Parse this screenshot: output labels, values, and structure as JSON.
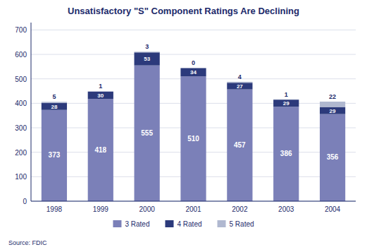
{
  "chart_data": {
    "type": "bar",
    "title": "Unsatisfactory \"S\" Component Ratings Are Declining",
    "categories": [
      "1998",
      "1999",
      "2000",
      "2001",
      "2002",
      "2003",
      "2004"
    ],
    "series": [
      {
        "name": "3 Rated",
        "color": "#7B80B8",
        "values": [
          373,
          418,
          555,
          510,
          457,
          386,
          356
        ]
      },
      {
        "name": "4 Rated",
        "color": "#2C3A7B",
        "values": [
          28,
          30,
          53,
          34,
          27,
          29,
          29
        ]
      },
      {
        "name": "5 Rated",
        "color": "#B0B8D0",
        "values": [
          5,
          1,
          3,
          0,
          4,
          1,
          22
        ]
      }
    ],
    "stacked": true,
    "data_labels": true,
    "ylim": [
      0,
      730
    ],
    "yticks": [
      0,
      100,
      200,
      300,
      400,
      500,
      600,
      700
    ],
    "grid": true,
    "legend": "bottom",
    "annotations": [
      "Source:  FDIC"
    ]
  }
}
